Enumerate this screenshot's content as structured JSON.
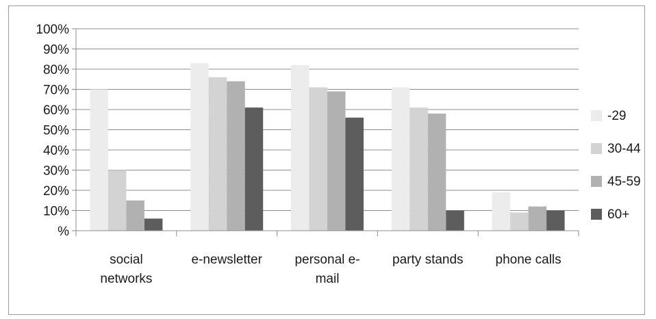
{
  "chart_data": {
    "type": "bar",
    "title": "",
    "xlabel": "",
    "ylabel": "",
    "categories": [
      [
        "social",
        "networks"
      ],
      [
        "e-newsletter"
      ],
      [
        "personal e-",
        "mail"
      ],
      [
        "party stands"
      ],
      [
        "phone calls"
      ]
    ],
    "series": [
      {
        "name": "-29",
        "color": "#ececec",
        "values": [
          70,
          83,
          82,
          71,
          19
        ]
      },
      {
        "name": "30-44",
        "color": "#d3d3d3",
        "values": [
          30,
          76,
          71,
          61,
          9
        ]
      },
      {
        "name": "45-59",
        "color": "#b1b1b1",
        "values": [
          15,
          74,
          69,
          58,
          12
        ]
      },
      {
        "name": "60+",
        "color": "#5d5d5d",
        "values": [
          6,
          61,
          56,
          10,
          10
        ]
      }
    ],
    "ylim": [
      0,
      100
    ],
    "y_ticks": [
      0,
      10,
      20,
      30,
      40,
      50,
      60,
      70,
      80,
      90,
      100
    ],
    "y_tick_labels": [
      "%",
      "10%",
      "20%",
      "30%",
      "40%",
      "50%",
      "60%",
      "70%",
      "80%",
      "90%",
      "100%"
    ],
    "grid": true,
    "legend_position": "right"
  }
}
